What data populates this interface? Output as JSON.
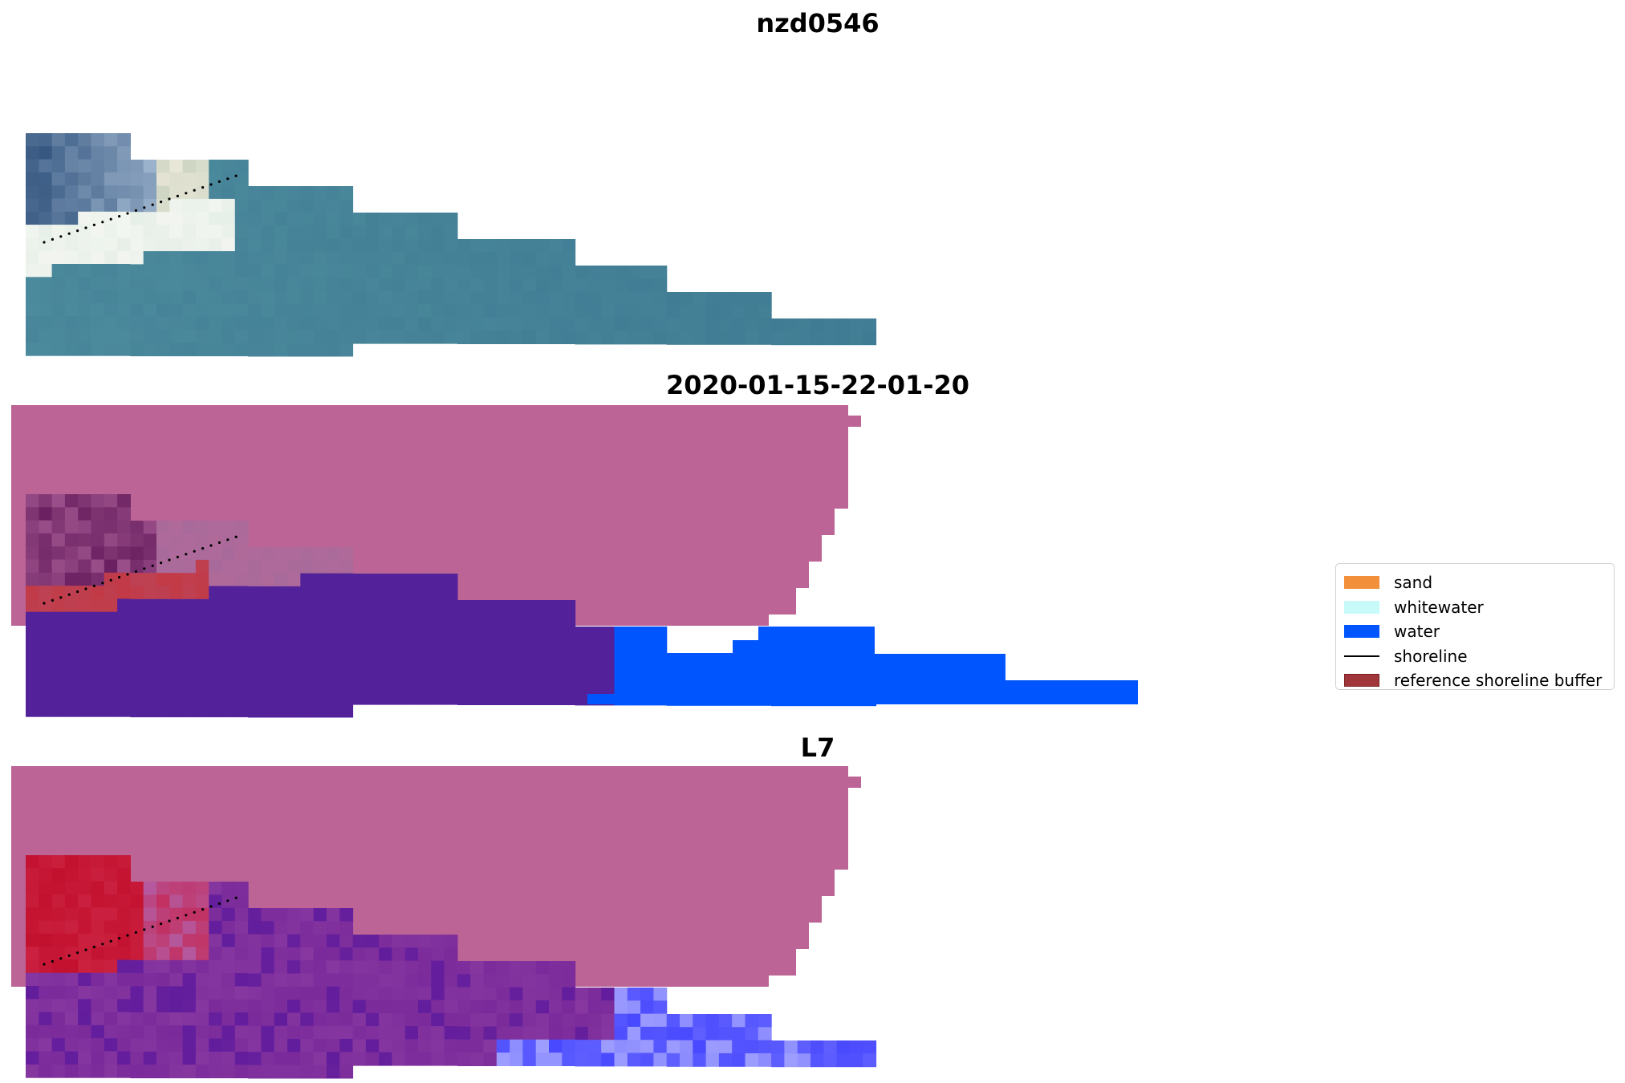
{
  "figure": {
    "panels": [
      {
        "id": "rgb",
        "title": "nzd0546"
      },
      {
        "id": "classified",
        "title": "2020-01-15-22-01-20"
      },
      {
        "id": "probability",
        "title": "L7"
      }
    ]
  },
  "legend": {
    "placement": "right",
    "items": [
      {
        "label": "sand",
        "type": "patch",
        "color": "#f28f3b"
      },
      {
        "label": "whitewater",
        "type": "patch",
        "color": "#c8fafa"
      },
      {
        "label": "water",
        "type": "patch",
        "color": "#0055ff"
      },
      {
        "label": "shoreline",
        "type": "line",
        "color": "#000000"
      },
      {
        "label": "reference shoreline buffer",
        "type": "patch",
        "color": "#a0353a"
      }
    ]
  },
  "colors": {
    "buffer_pink": "#bc6496",
    "land_purple": "#53229a",
    "water_blue": "#0055ff",
    "buffer_red": "#c23a46",
    "prob_purple": "#7a2a9a",
    "prob_red": "#c2102e",
    "prob_blue": "#5f5fff",
    "rgb_water": "#3e7a92",
    "rgb_dark": "#2d4f7a",
    "rgb_white": "#f3f6f0"
  }
}
